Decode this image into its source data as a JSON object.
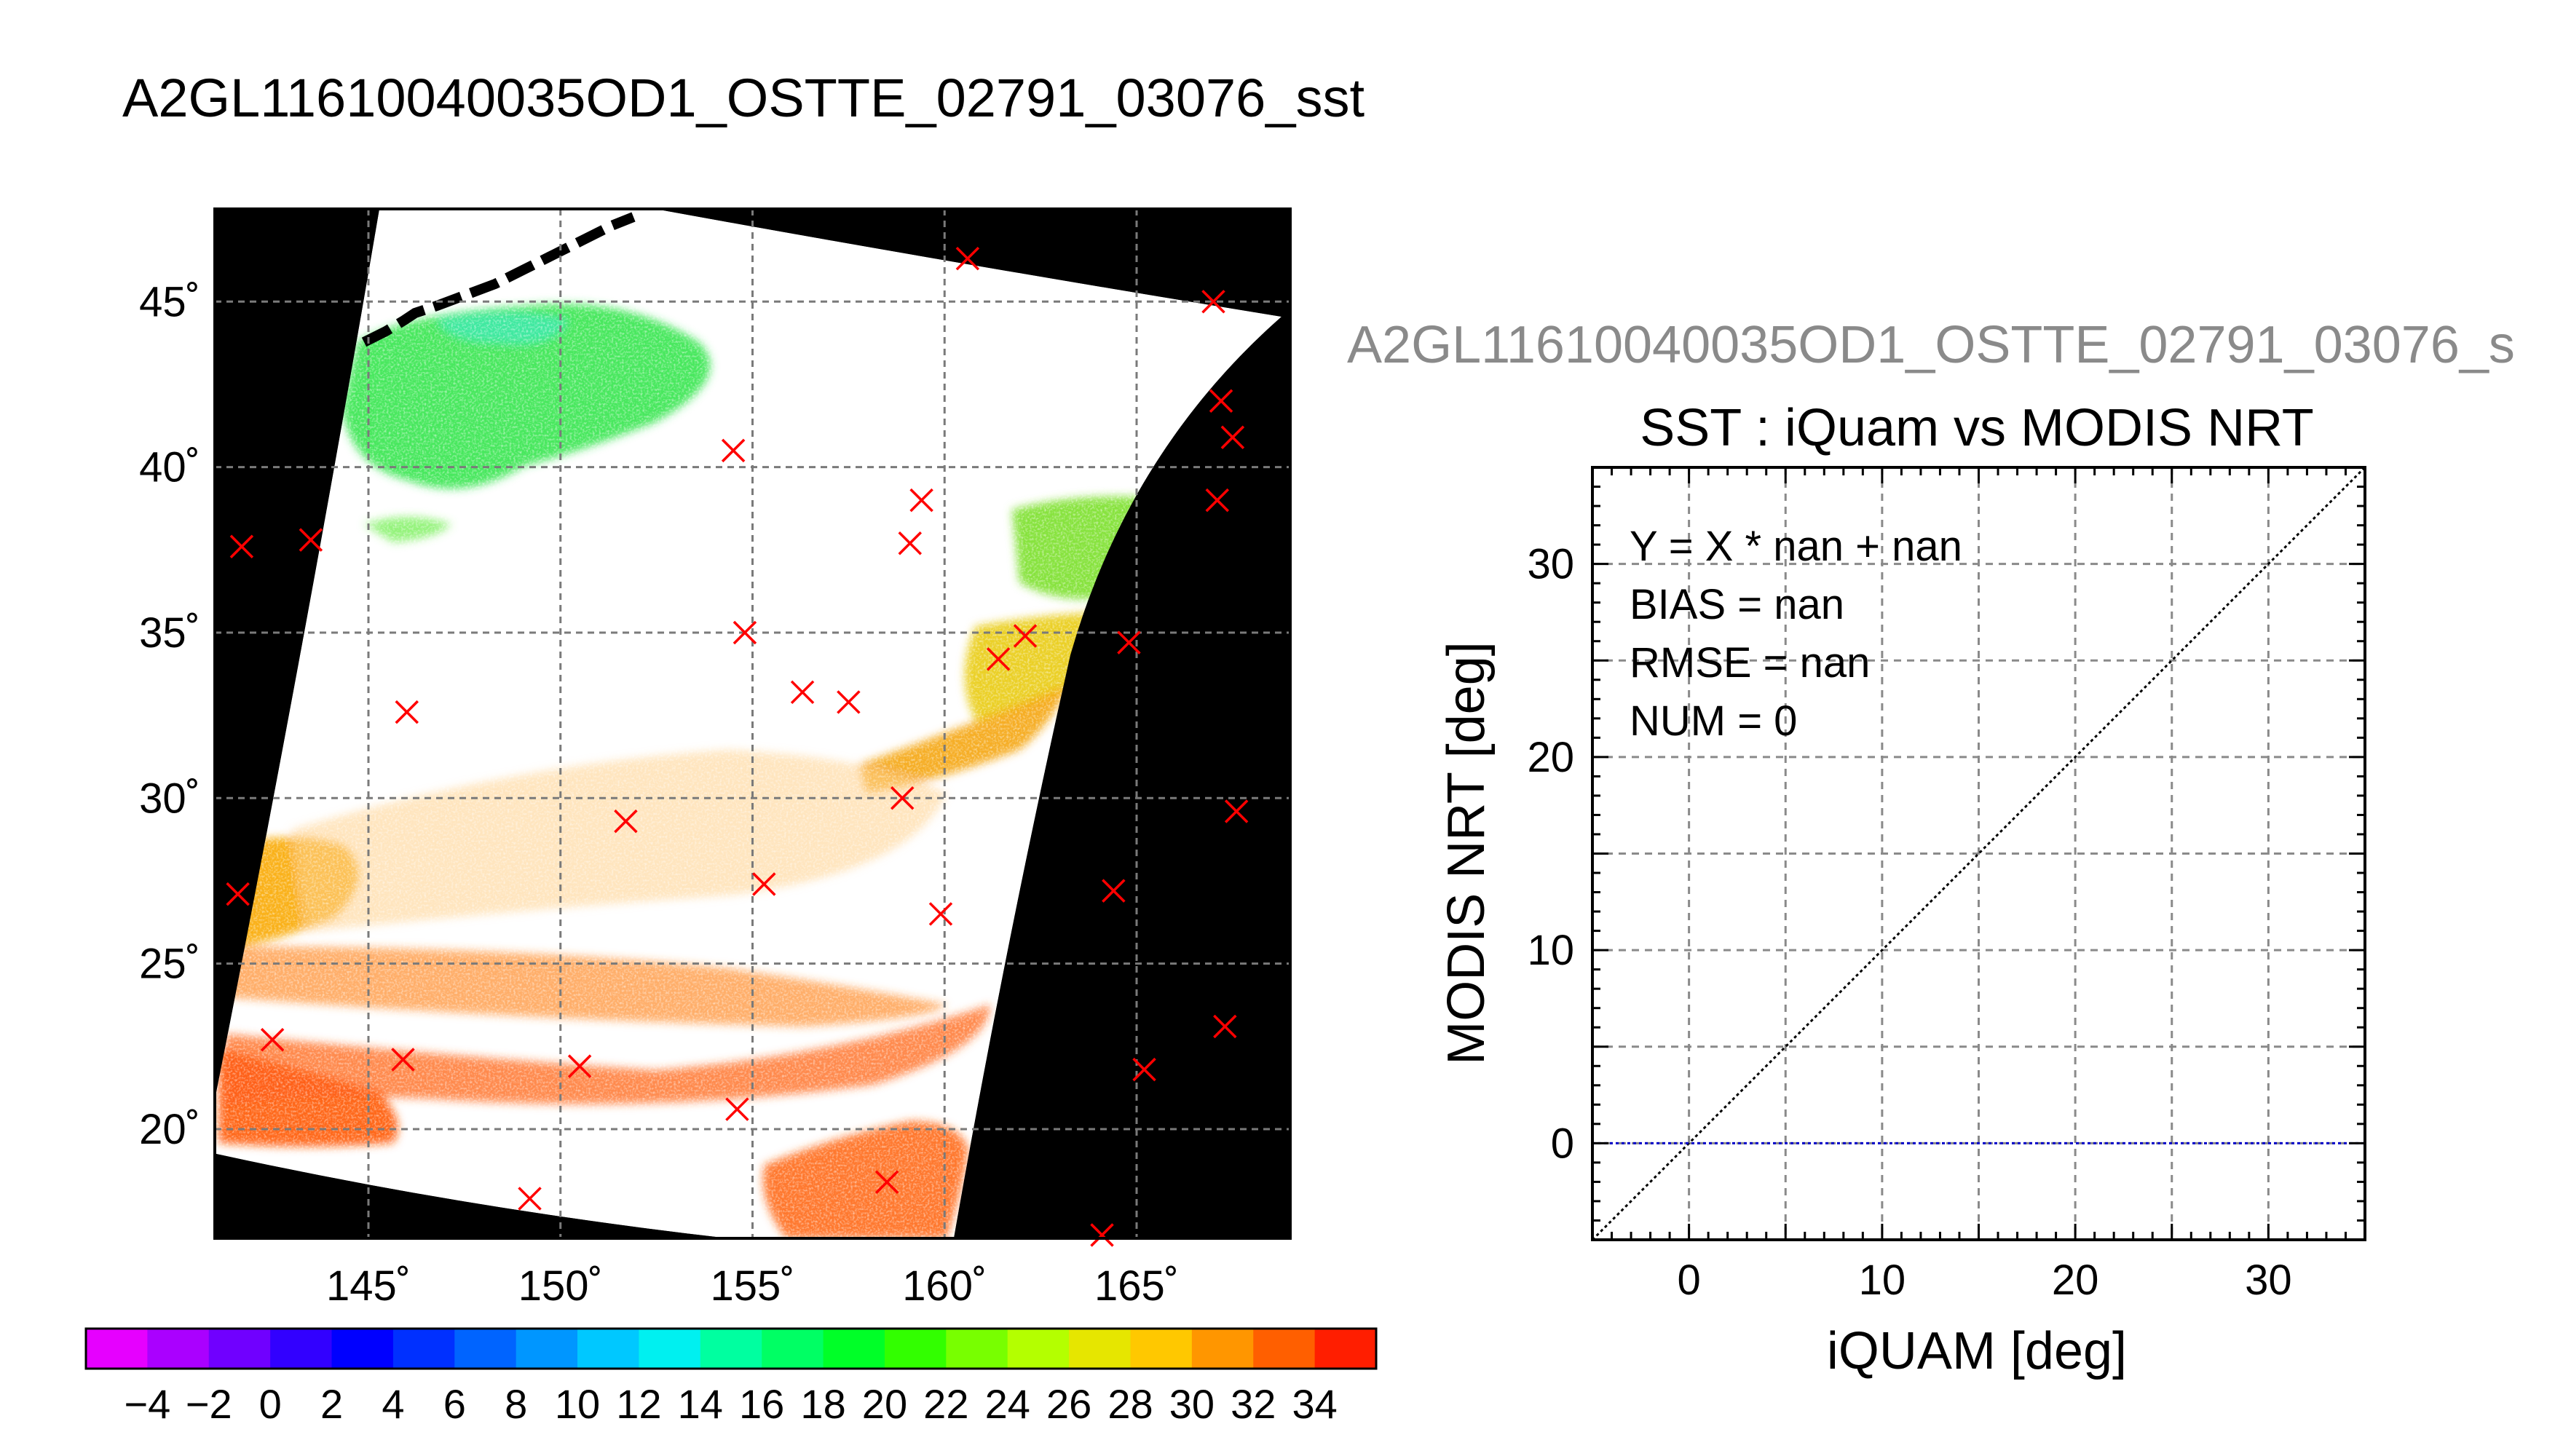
{
  "page": {
    "title": "A2GL11610040035OD1_OSTTE_02791_03076_sst",
    "right_title": "A2GL11610040035OD1_OSTTE_02791_03076_s"
  },
  "chart_data": [
    {
      "type": "heatmap",
      "title": "A2GL11610040035OD1_OSTTE_02791_03076_sst",
      "x_ticks": [
        "145˚",
        "150˚",
        "155˚",
        "160˚",
        "165˚"
      ],
      "x_tick_values": [
        145,
        150,
        155,
        160,
        165
      ],
      "y_ticks": [
        "20˚",
        "25˚",
        "30˚",
        "35˚",
        "40˚",
        "45˚"
      ],
      "y_tick_values": [
        20,
        25,
        30,
        35,
        40,
        45
      ],
      "xlim": [
        141,
        169
      ],
      "ylim": [
        16.7,
        47.8
      ],
      "grid": true,
      "colorbar": {
        "ticks": [
          "−4",
          "−2",
          "0",
          "2",
          "4",
          "6",
          "8",
          "10",
          "12",
          "14",
          "16",
          "18",
          "20",
          "22",
          "24",
          "26",
          "28",
          "30",
          "32",
          "34"
        ],
        "colors": [
          "#e600ff",
          "#aa00ff",
          "#7000ff",
          "#3200ff",
          "#0000ff",
          "#0030ff",
          "#0064ff",
          "#0096ff",
          "#00c8ff",
          "#00f0f0",
          "#00ffa0",
          "#00ff64",
          "#00ff28",
          "#32ff00",
          "#78ff00",
          "#b4ff00",
          "#e6e600",
          "#ffc800",
          "#ff9600",
          "#ff5f00",
          "#ff1e00"
        ]
      },
      "markers": [
        {
          "lon": 141.7,
          "lat": 37.6
        },
        {
          "lon": 143.5,
          "lat": 37.8
        },
        {
          "lon": 146.0,
          "lat": 32.6
        },
        {
          "lon": 141.6,
          "lat": 27.1
        },
        {
          "lon": 142.5,
          "lat": 22.7
        },
        {
          "lon": 145.9,
          "lat": 22.1
        },
        {
          "lon": 149.2,
          "lat": 17.9
        },
        {
          "lon": 150.5,
          "lat": 21.9
        },
        {
          "lon": 151.7,
          "lat": 29.3
        },
        {
          "lon": 154.5,
          "lat": 40.5
        },
        {
          "lon": 154.8,
          "lat": 35.0
        },
        {
          "lon": 154.6,
          "lat": 20.6
        },
        {
          "lon": 155.3,
          "lat": 27.4
        },
        {
          "lon": 156.3,
          "lat": 33.2
        },
        {
          "lon": 157.5,
          "lat": 32.9
        },
        {
          "lon": 158.9,
          "lat": 30.0
        },
        {
          "lon": 159.1,
          "lat": 37.7
        },
        {
          "lon": 159.4,
          "lat": 39.0
        },
        {
          "lon": 158.5,
          "lat": 18.4
        },
        {
          "lon": 159.9,
          "lat": 26.5
        },
        {
          "lon": 160.6,
          "lat": 46.3
        },
        {
          "lon": 161.4,
          "lat": 34.2
        },
        {
          "lon": 162.1,
          "lat": 34.9
        },
        {
          "lon": 164.1,
          "lat": 16.8
        },
        {
          "lon": 164.4,
          "lat": 27.2
        },
        {
          "lon": 164.8,
          "lat": 34.7
        },
        {
          "lon": 165.2,
          "lat": 21.8
        },
        {
          "lon": 167.0,
          "lat": 45.0
        },
        {
          "lon": 167.1,
          "lat": 39.0
        },
        {
          "lon": 167.2,
          "lat": 42.0
        },
        {
          "lon": 167.3,
          "lat": 23.1
        },
        {
          "lon": 167.5,
          "lat": 40.9
        },
        {
          "lon": 167.6,
          "lat": 29.6
        }
      ],
      "sst_regions": [
        {
          "label": "cold green patch NW",
          "value": 18
        },
        {
          "label": "green patch NE",
          "value": 23
        },
        {
          "label": "orange band S",
          "value": 30
        },
        {
          "label": "red-orange band SW",
          "value": 31
        }
      ]
    },
    {
      "type": "scatter",
      "title": "SST : iQuam vs MODIS NRT",
      "xlabel": "iQUAM [deg]",
      "ylabel": "MODIS NRT [deg]",
      "xlim": [
        -5,
        35
      ],
      "ylim": [
        -5,
        35
      ],
      "x_ticks": [
        0,
        10,
        20,
        30
      ],
      "y_ticks": [
        0,
        10,
        20,
        30
      ],
      "grid": true,
      "series": [
        {
          "name": "",
          "type": "line",
          "x": [
            -5,
            35
          ],
          "y": [
            -5,
            35
          ],
          "color": "#000000",
          "style": "dotted"
        },
        {
          "name": "",
          "type": "line",
          "x": [
            -5,
            35
          ],
          "y": [
            0,
            0
          ],
          "color": "#0000c8",
          "style": "dotted"
        }
      ],
      "stats": [
        "Y = X * nan + nan",
        "BIAS = nan",
        "RMSE = nan",
        "NUM = 0"
      ]
    }
  ]
}
